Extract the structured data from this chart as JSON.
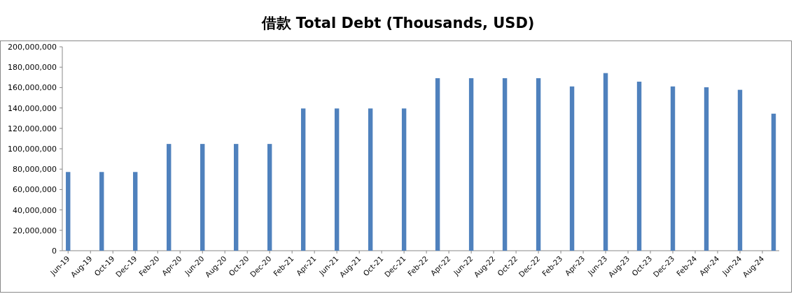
{
  "chart_data": {
    "type": "bar",
    "title": "借款 Total Debt (Thousands, USD)",
    "x": [
      "2019-06",
      "2019-09",
      "2019-12",
      "2020-03",
      "2020-06",
      "2020-09",
      "2020-12",
      "2021-03",
      "2021-06",
      "2021-09",
      "2021-12",
      "2022-03",
      "2022-06",
      "2022-09",
      "2022-12",
      "2023-03",
      "2023-06",
      "2023-09",
      "2023-12",
      "2024-03",
      "2024-06",
      "2024-09"
    ],
    "series": [
      {
        "color": "#4f81bd",
        "values": [
          77200000,
          77200000,
          77200000,
          104700000,
          104700000,
          104700000,
          104700000,
          139500000,
          139500000,
          139500000,
          139500000,
          169200000,
          169200000,
          169200000,
          169200000,
          161100000,
          174200000,
          165800000,
          161100000,
          160300000,
          157800000,
          134400000
        ]
      }
    ],
    "xlim": [
      "2019-05-16",
      "2024-09-16"
    ],
    "xticks": [
      {
        "value": "2019-06",
        "label": "Jun-19"
      },
      {
        "value": "2019-08",
        "label": "Aug-19"
      },
      {
        "value": "2019-10",
        "label": "Oct-19"
      },
      {
        "value": "2019-12",
        "label": "Dec-19"
      },
      {
        "value": "2020-02",
        "label": "Feb-20"
      },
      {
        "value": "2020-04",
        "label": "Apr-20"
      },
      {
        "value": "2020-06",
        "label": "Jun-20"
      },
      {
        "value": "2020-08",
        "label": "Aug-20"
      },
      {
        "value": "2020-10",
        "label": "Oct-20"
      },
      {
        "value": "2020-12",
        "label": "Dec-20"
      },
      {
        "value": "2021-02",
        "label": "Feb-21"
      },
      {
        "value": "2021-04",
        "label": "Apr-21"
      },
      {
        "value": "2021-06",
        "label": "Jun-21"
      },
      {
        "value": "2021-08",
        "label": "Aug-21"
      },
      {
        "value": "2021-10",
        "label": "Oct-21"
      },
      {
        "value": "2021-12",
        "label": "Dec-21"
      },
      {
        "value": "2022-02",
        "label": "Feb-22"
      },
      {
        "value": "2022-04",
        "label": "Apr-22"
      },
      {
        "value": "2022-06",
        "label": "Jun-22"
      },
      {
        "value": "2022-08",
        "label": "Aug-22"
      },
      {
        "value": "2022-10",
        "label": "Oct-22"
      },
      {
        "value": "2022-12",
        "label": "Dec-22"
      },
      {
        "value": "2023-02",
        "label": "Feb-23"
      },
      {
        "value": "2023-04",
        "label": "Apr-23"
      },
      {
        "value": "2023-06",
        "label": "Jun-23"
      },
      {
        "value": "2023-08",
        "label": "Aug-23"
      },
      {
        "value": "2023-10",
        "label": "Oct-23"
      },
      {
        "value": "2023-12",
        "label": "Dec-23"
      },
      {
        "value": "2024-02",
        "label": "Feb-24"
      },
      {
        "value": "2024-04",
        "label": "Apr-24"
      },
      {
        "value": "2024-06",
        "label": "Jun-24"
      },
      {
        "value": "2024-08",
        "label": "Aug-24"
      }
    ],
    "ylim": [
      0,
      200000000
    ],
    "yticks": [
      {
        "value": 0,
        "label": "0"
      },
      {
        "value": 20000000,
        "label": "20,000,000"
      },
      {
        "value": 40000000,
        "label": "40,000,000"
      },
      {
        "value": 60000000,
        "label": "60,000,000"
      },
      {
        "value": 80000000,
        "label": "80,000,000"
      },
      {
        "value": 100000000,
        "label": "100,000,000"
      },
      {
        "value": 120000000,
        "label": "120,000,000"
      },
      {
        "value": 140000000,
        "label": "140,000,000"
      },
      {
        "value": 160000000,
        "label": "160,000,000"
      },
      {
        "value": 180000000,
        "label": "180,000,000"
      },
      {
        "value": 200000000,
        "label": "200,000,000"
      }
    ]
  }
}
